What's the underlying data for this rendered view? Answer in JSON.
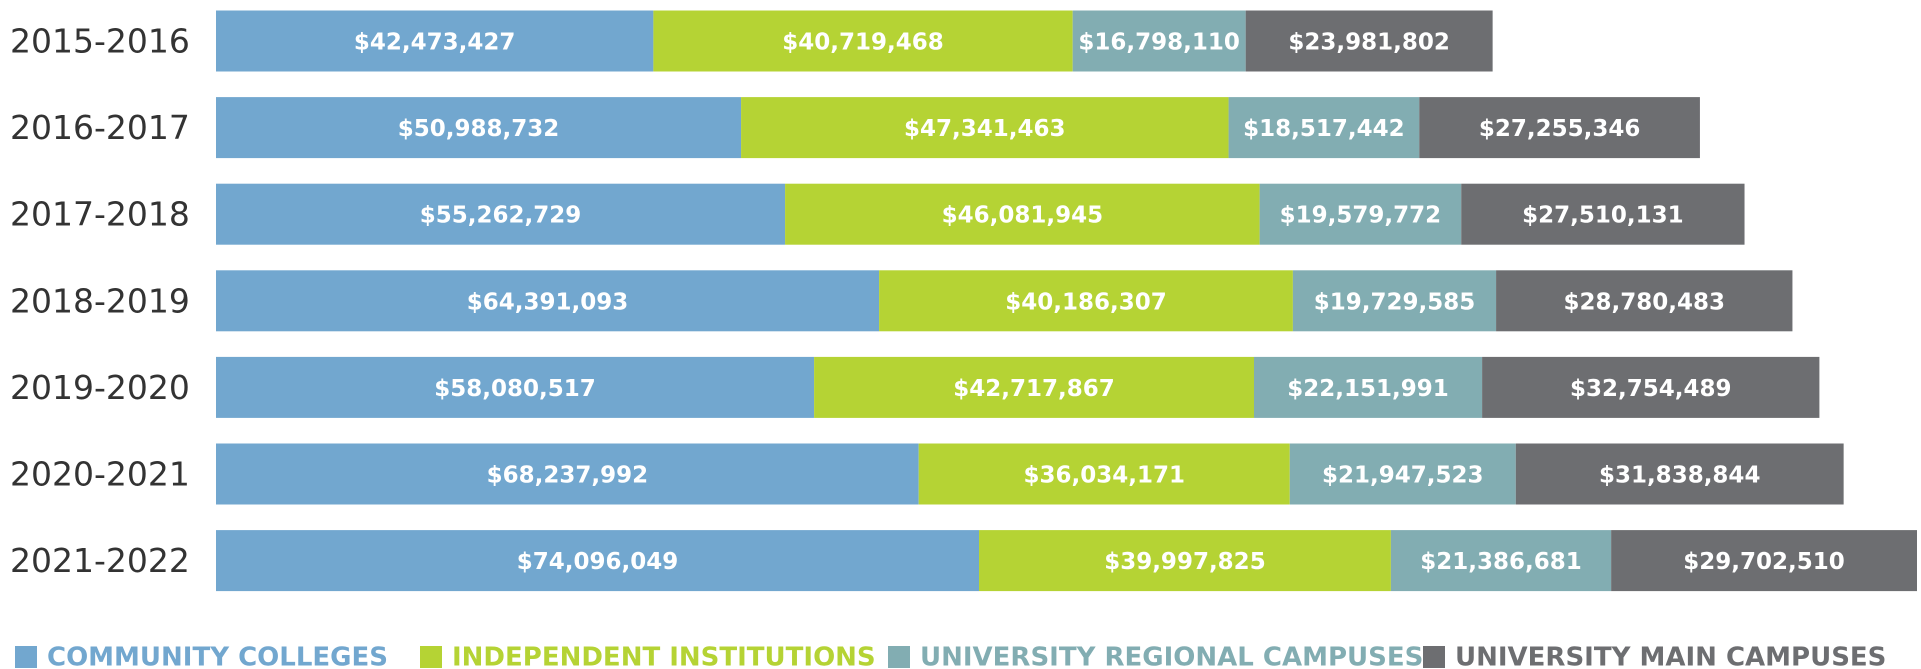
{
  "chart_data": {
    "type": "stacked-bar-horizontal",
    "categories": [
      "2015-2016",
      "2016-2017",
      "2017-2018",
      "2018-2019",
      "2019-2020",
      "2020-2021",
      "2021-2022"
    ],
    "series": [
      {
        "name": "COMMUNITY COLLEGES",
        "color": "#72a7cf",
        "values": [
          42473427,
          50988732,
          55262729,
          64391093,
          58080517,
          68237992,
          74096049
        ],
        "value_labels": [
          "$42,473,427",
          "$50,988,732",
          "$55,262,729",
          "$64,391,093",
          "$58,080,517",
          "$68,237,992",
          "$74,096,049"
        ]
      },
      {
        "name": "INDEPENDENT INSTITUTIONS",
        "color": "#b5d334",
        "values": [
          40719468,
          47341463,
          46081945,
          40186307,
          42717867,
          36034171,
          39997825
        ],
        "value_labels": [
          "$40,719,468",
          "$47,341,463",
          "$46,081,945",
          "$40,186,307",
          "$42,717,867",
          "$36,034,171",
          "$39,997,825"
        ]
      },
      {
        "name": "UNIVERSITY REGIONAL CAMPUSES",
        "color": "#82adb2",
        "values": [
          16798110,
          18517442,
          19579772,
          19729585,
          22151991,
          21947523,
          21386681
        ],
        "value_labels": [
          "$16,798,110",
          "$18,517,442",
          "$19,579,772",
          "$19,729,585",
          "$22,151,991",
          "$21,947,523",
          "$21,386,681"
        ]
      },
      {
        "name": "UNIVERSITY MAIN CAMPUSES",
        "color": "#6d6e71",
        "values": [
          23981802,
          27255346,
          27510131,
          28780483,
          32754489,
          31838844,
          29702510
        ],
        "value_labels": [
          "$23,981,802",
          "$27,255,346",
          "$27,510,131",
          "$28,780,483",
          "$32,754,489",
          "$31,838,844",
          "$29,702,510"
        ]
      }
    ],
    "legend": "bottom"
  }
}
